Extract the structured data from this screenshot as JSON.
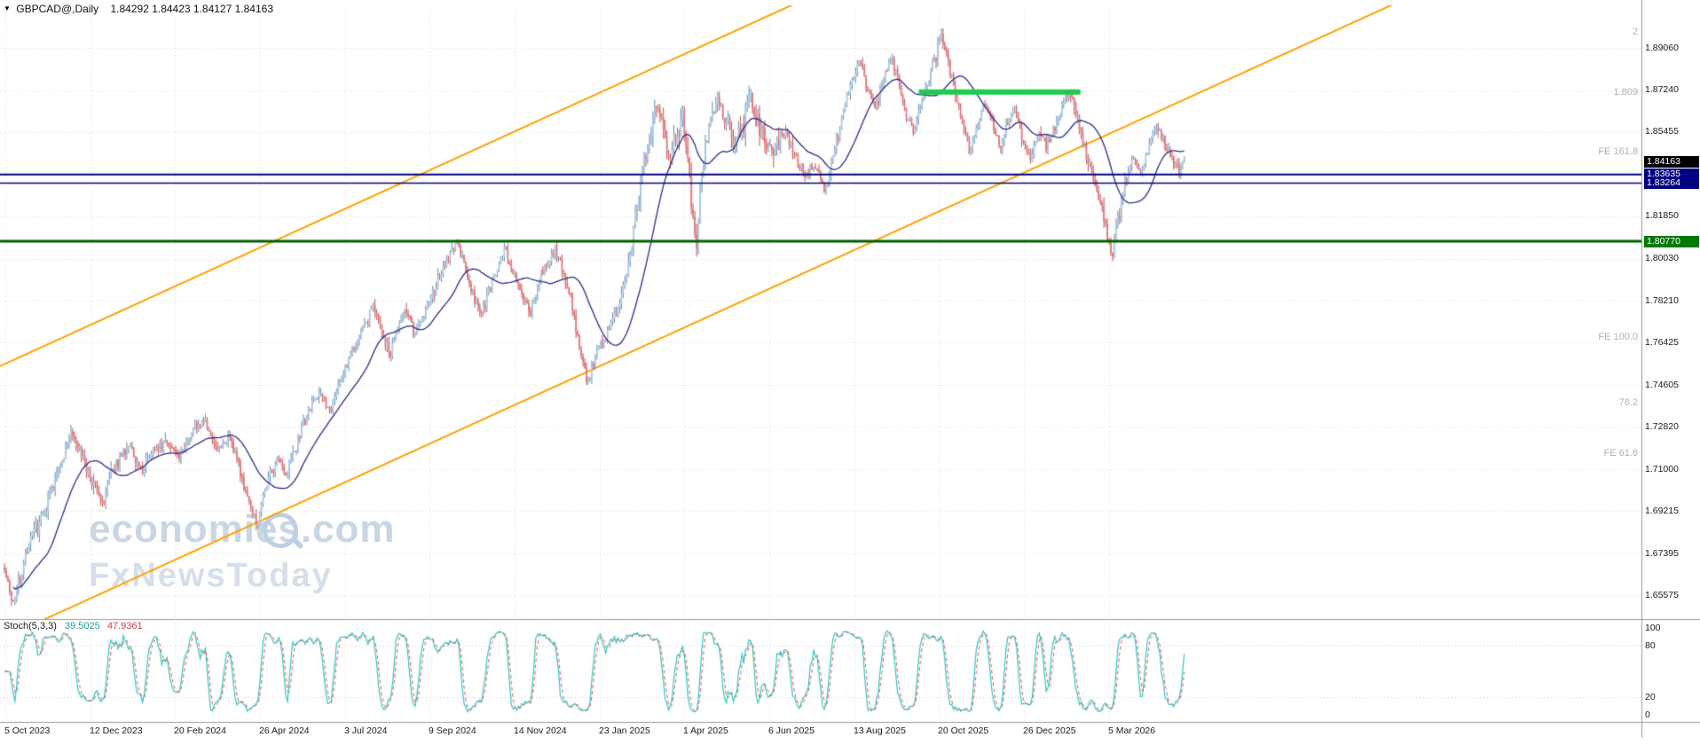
{
  "header": {
    "symbol": "GBPCAD@,Daily",
    "ohlc": "1.84292 1.84423 1.84127 1.84163"
  },
  "watermark": {
    "line1": "economies.com",
    "line2": "FxNewsToday"
  },
  "stoch": {
    "name": "Stoch(5,3,3)",
    "k": "39.5025",
    "d": "47.9361"
  },
  "colors": {
    "background": "#ffffff",
    "grid": "#dadae8",
    "candle_up_fill": "#aac9e2",
    "candle_up_border": "#4d7ba8",
    "candle_dn_fill": "#e37878",
    "candle_dn_border": "#c03c3c",
    "ma_line": "#2b2b88",
    "channel": "#ffa000",
    "navy_line": "#000082",
    "green_line": "#005f00",
    "resistance_segment": "#1ecb4f",
    "stoch_k": "#2cc6c6",
    "stoch_d": "#e05555",
    "separator": "#9a9a9a",
    "fib_text": "#b2b2b2"
  },
  "chart_data": {
    "type": "candlestick",
    "title": "GBPCAD Daily with Stochastic(5,3,3)",
    "symbol": "GBPCAD",
    "timeframe": "Daily",
    "ohlc_display": {
      "open": 1.84292,
      "high": 1.84423,
      "low": 1.84127,
      "close": 1.84163
    },
    "y_axis_ticks": [
      "1.89060",
      "1.87240",
      "1.85455",
      "1.83635",
      "1.81850",
      "1.80030",
      "1.78210",
      "1.76425",
      "1.74605",
      "1.72820",
      "1.71000",
      "1.69215",
      "1.67395",
      "1.65575"
    ],
    "y_axis_range": {
      "top": 1.9089,
      "bottom": 1.6458
    },
    "x_axis_labels": [
      "5 Oct 2023",
      "12 Dec 2023",
      "20 Feb 2024",
      "26 Apr 2024",
      "3 Jul 2024",
      "9 Sep 2024",
      "14 Nov 2024",
      "23 Jan 2025",
      "1 Apr 2025",
      "6 Jun 2025",
      "13 Aug 2025",
      "20 Oct 2025",
      "26 Dec 2025",
      "5 Mar 2026"
    ],
    "candle_count": 676,
    "seed": 7,
    "current_price": {
      "value": 1.84163,
      "label": "1.84163"
    },
    "price_path_anchors": [
      [
        0.0,
        1.668
      ],
      [
        0.007,
        1.651
      ],
      [
        0.018,
        1.674
      ],
      [
        0.032,
        1.69
      ],
      [
        0.044,
        1.706
      ],
      [
        0.057,
        1.727
      ],
      [
        0.066,
        1.714
      ],
      [
        0.075,
        1.703
      ],
      [
        0.083,
        1.696
      ],
      [
        0.094,
        1.712
      ],
      [
        0.106,
        1.722
      ],
      [
        0.116,
        1.709
      ],
      [
        0.127,
        1.719
      ],
      [
        0.138,
        1.723
      ],
      [
        0.148,
        1.714
      ],
      [
        0.159,
        1.727
      ],
      [
        0.17,
        1.731
      ],
      [
        0.18,
        1.717
      ],
      [
        0.19,
        1.723
      ],
      [
        0.199,
        1.711
      ],
      [
        0.208,
        1.694
      ],
      [
        0.214,
        1.687
      ],
      [
        0.222,
        1.704
      ],
      [
        0.231,
        1.714
      ],
      [
        0.239,
        1.707
      ],
      [
        0.25,
        1.724
      ],
      [
        0.26,
        1.737
      ],
      [
        0.268,
        1.743
      ],
      [
        0.277,
        1.736
      ],
      [
        0.286,
        1.749
      ],
      [
        0.295,
        1.761
      ],
      [
        0.305,
        1.772
      ],
      [
        0.313,
        1.779
      ],
      [
        0.32,
        1.768
      ],
      [
        0.327,
        1.759
      ],
      [
        0.334,
        1.773
      ],
      [
        0.34,
        1.779
      ],
      [
        0.348,
        1.767
      ],
      [
        0.355,
        1.776
      ],
      [
        0.363,
        1.785
      ],
      [
        0.372,
        1.796
      ],
      [
        0.379,
        1.804
      ],
      [
        0.384,
        1.807
      ],
      [
        0.391,
        1.796
      ],
      [
        0.397,
        1.785
      ],
      [
        0.405,
        1.777
      ],
      [
        0.412,
        1.789
      ],
      [
        0.418,
        1.797
      ],
      [
        0.425,
        1.804
      ],
      [
        0.432,
        1.794
      ],
      [
        0.439,
        1.785
      ],
      [
        0.446,
        1.778
      ],
      [
        0.453,
        1.791
      ],
      [
        0.461,
        1.799
      ],
      [
        0.467,
        1.804
      ],
      [
        0.473,
        1.794
      ],
      [
        0.48,
        1.785
      ],
      [
        0.487,
        1.763
      ],
      [
        0.494,
        1.748
      ],
      [
        0.501,
        1.758
      ],
      [
        0.507,
        1.765
      ],
      [
        0.514,
        1.773
      ],
      [
        0.52,
        1.78
      ],
      [
        0.527,
        1.792
      ],
      [
        0.533,
        1.812
      ],
      [
        0.54,
        1.834
      ],
      [
        0.547,
        1.852
      ],
      [
        0.553,
        1.869
      ],
      [
        0.559,
        1.857
      ],
      [
        0.564,
        1.841
      ],
      [
        0.57,
        1.853
      ],
      [
        0.575,
        1.861
      ],
      [
        0.58,
        1.845
      ],
      [
        0.583,
        1.82
      ],
      [
        0.586,
        1.806
      ],
      [
        0.59,
        1.83
      ],
      [
        0.594,
        1.85
      ],
      [
        0.599,
        1.86
      ],
      [
        0.606,
        1.867
      ],
      [
        0.614,
        1.857
      ],
      [
        0.62,
        1.847
      ],
      [
        0.627,
        1.859
      ],
      [
        0.632,
        1.871
      ],
      [
        0.638,
        1.859
      ],
      [
        0.645,
        1.851
      ],
      [
        0.652,
        1.848
      ],
      [
        0.66,
        1.856
      ],
      [
        0.666,
        1.85
      ],
      [
        0.672,
        1.842
      ],
      [
        0.68,
        1.836
      ],
      [
        0.688,
        1.842
      ],
      [
        0.695,
        1.828
      ],
      [
        0.7,
        1.838
      ],
      [
        0.706,
        1.852
      ],
      [
        0.712,
        1.866
      ],
      [
        0.718,
        1.876
      ],
      [
        0.725,
        1.884
      ],
      [
        0.731,
        1.874
      ],
      [
        0.738,
        1.864
      ],
      [
        0.745,
        1.876
      ],
      [
        0.751,
        1.886
      ],
      [
        0.758,
        1.876
      ],
      [
        0.764,
        1.862
      ],
      [
        0.771,
        1.854
      ],
      [
        0.777,
        1.866
      ],
      [
        0.783,
        1.876
      ],
      [
        0.79,
        1.888
      ],
      [
        0.794,
        1.896
      ],
      [
        0.799,
        1.886
      ],
      [
        0.806,
        1.872
      ],
      [
        0.812,
        1.858
      ],
      [
        0.818,
        1.846
      ],
      [
        0.825,
        1.858
      ],
      [
        0.831,
        1.868
      ],
      [
        0.838,
        1.858
      ],
      [
        0.844,
        1.848
      ],
      [
        0.85,
        1.858
      ],
      [
        0.857,
        1.866
      ],
      [
        0.863,
        1.852
      ],
      [
        0.87,
        1.844
      ],
      [
        0.877,
        1.854
      ],
      [
        0.883,
        1.848
      ],
      [
        0.89,
        1.856
      ],
      [
        0.896,
        1.866
      ],
      [
        0.903,
        1.872
      ],
      [
        0.909,
        1.86
      ],
      [
        0.916,
        1.848
      ],
      [
        0.922,
        1.836
      ],
      [
        0.928,
        1.824
      ],
      [
        0.935,
        1.812
      ],
      [
        0.939,
        1.803
      ],
      [
        0.944,
        1.818
      ],
      [
        0.95,
        1.832
      ],
      [
        0.956,
        1.843
      ],
      [
        0.963,
        1.838
      ],
      [
        0.97,
        1.848
      ],
      [
        0.976,
        1.858
      ],
      [
        0.983,
        1.85
      ],
      [
        0.989,
        1.843
      ],
      [
        0.994,
        1.838
      ],
      [
        1.0,
        1.8416
      ]
    ],
    "moving_average_period": 25,
    "horizontal_lines": [
      {
        "price": 1.83635,
        "color": "#000082",
        "width": 2
      },
      {
        "price": 1.83264,
        "color": "#000082",
        "width": 1.5
      },
      {
        "price": 1.8077,
        "color": "#005f00",
        "width": 3
      }
    ],
    "price_badges": [
      {
        "label": "1.84163",
        "price": 1.84163,
        "bg": "#000000"
      },
      {
        "label": "1.83635",
        "price": 1.83635,
        "bg": "#000082"
      },
      {
        "label": "1.83264",
        "price": 1.83264,
        "bg": "#000082"
      },
      {
        "label": "1.80770",
        "price": 1.8077,
        "bg": "#007a00"
      }
    ],
    "resistance_segment": {
      "price": 1.8717,
      "t_start": 0.775,
      "t_end": 0.912,
      "color": "#1ecb4f",
      "width": 6
    },
    "channel_lines": [
      {
        "price_at_left": 1.7542,
        "price_at_right": 2.075
      },
      {
        "price_at_left": 1.637,
        "price_at_right": 1.9578
      }
    ],
    "fib_labels": [
      {
        "text": "2",
        "price": 1.8971
      },
      {
        "text": "1.809",
        "price": 1.8715
      },
      {
        "text": "FE 161.8",
        "price": 1.846
      },
      {
        "text": "FE 100.0",
        "price": 1.7665
      },
      {
        "text": "78.2",
        "price": 1.7385
      },
      {
        "text": "FE 61.8",
        "price": 1.7167
      }
    ],
    "stochastic": {
      "k_period": 5,
      "slowing": 3,
      "d_period": 3,
      "current_k": 39.5025,
      "current_d": 47.9361,
      "scale_labels": [
        "100",
        "80",
        "20",
        "0"
      ],
      "levels": [
        80,
        20
      ]
    }
  }
}
